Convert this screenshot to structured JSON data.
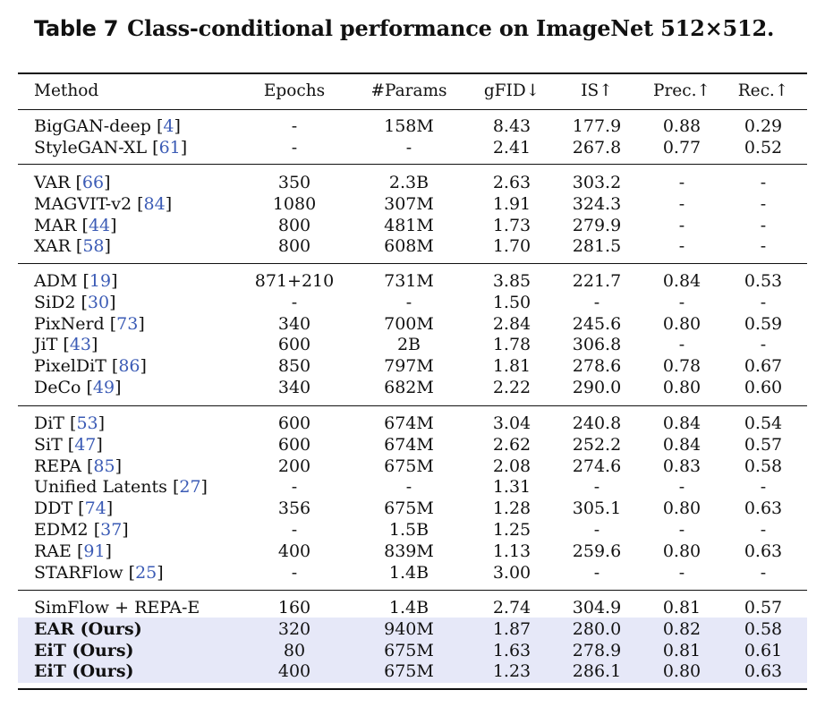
{
  "caption": {
    "label": "Table 7",
    "text": "Class-conditional performance on ImageNet 512×512."
  },
  "columns": [
    "Method",
    "Epochs",
    "#Params",
    "gFID↓",
    "IS↑",
    "Prec.↑",
    "Rec.↑"
  ],
  "groups": [
    {
      "rows": [
        {
          "method": "BigGAN-deep",
          "cite": "4",
          "epochs": "-",
          "params": "158M",
          "gfid": "8.43",
          "is": "177.9",
          "prec": "0.88",
          "rec": "0.29"
        },
        {
          "method": "StyleGAN-XL",
          "cite": "61",
          "epochs": "-",
          "params": "-",
          "gfid": "2.41",
          "is": "267.8",
          "prec": "0.77",
          "rec": "0.52"
        }
      ]
    },
    {
      "rows": [
        {
          "method": "VAR",
          "cite": "66",
          "epochs": "350",
          "params": "2.3B",
          "gfid": "2.63",
          "is": "303.2",
          "prec": "-",
          "rec": "-"
        },
        {
          "method": "MAGVIT-v2",
          "cite": "84",
          "epochs": "1080",
          "params": "307M",
          "gfid": "1.91",
          "is": "324.3",
          "prec": "-",
          "rec": "-"
        },
        {
          "method": "MAR",
          "cite": "44",
          "epochs": "800",
          "params": "481M",
          "gfid": "1.73",
          "is": "279.9",
          "prec": "-",
          "rec": "-"
        },
        {
          "method": "XAR",
          "cite": "58",
          "epochs": "800",
          "params": "608M",
          "gfid": "1.70",
          "is": "281.5",
          "prec": "-",
          "rec": "-"
        }
      ]
    },
    {
      "rows": [
        {
          "method": "ADM",
          "cite": "19",
          "epochs": "871+210",
          "params": "731M",
          "gfid": "3.85",
          "is": "221.7",
          "prec": "0.84",
          "rec": "0.53"
        },
        {
          "method": "SiD2",
          "cite": "30",
          "epochs": "-",
          "params": "-",
          "gfid": "1.50",
          "is": "-",
          "prec": "-",
          "rec": "-"
        },
        {
          "method": "PixNerd",
          "cite": "73",
          "epochs": "340",
          "params": "700M",
          "gfid": "2.84",
          "is": "245.6",
          "prec": "0.80",
          "rec": "0.59"
        },
        {
          "method": "JiT",
          "cite": "43",
          "epochs": "600",
          "params": "2B",
          "gfid": "1.78",
          "is": "306.8",
          "prec": "-",
          "rec": "-"
        },
        {
          "method": "PixelDiT",
          "cite": "86",
          "epochs": "850",
          "params": "797M",
          "gfid": "1.81",
          "is": "278.6",
          "prec": "0.78",
          "rec": "0.67"
        },
        {
          "method": "DeCo",
          "cite": "49",
          "epochs": "340",
          "params": "682M",
          "gfid": "2.22",
          "is": "290.0",
          "prec": "0.80",
          "rec": "0.60"
        }
      ]
    },
    {
      "rows": [
        {
          "method": "DiT",
          "cite": "53",
          "epochs": "600",
          "params": "674M",
          "gfid": "3.04",
          "is": "240.8",
          "prec": "0.84",
          "rec": "0.54"
        },
        {
          "method": "SiT",
          "cite": "47",
          "epochs": "600",
          "params": "674M",
          "gfid": "2.62",
          "is": "252.2",
          "prec": "0.84",
          "rec": "0.57"
        },
        {
          "method": "REPA",
          "cite": "85",
          "epochs": "200",
          "params": "675M",
          "gfid": "2.08",
          "is": "274.6",
          "prec": "0.83",
          "rec": "0.58"
        },
        {
          "method": "Unified Latents",
          "cite": "27",
          "epochs": "-",
          "params": "-",
          "gfid": "1.31",
          "is": "-",
          "prec": "-",
          "rec": "-"
        },
        {
          "method": "DDT",
          "cite": "74",
          "epochs": "356",
          "params": "675M",
          "gfid": "1.28",
          "is": "305.1",
          "prec": "0.80",
          "rec": "0.63"
        },
        {
          "method": "EDM2",
          "cite": "37",
          "epochs": "-",
          "params": "1.5B",
          "gfid": "1.25",
          "is": "-",
          "prec": "-",
          "rec": "-"
        },
        {
          "method": "RAE",
          "cite": "91",
          "epochs": "400",
          "params": "839M",
          "gfid": "1.13",
          "is": "259.6",
          "prec": "0.80",
          "rec": "0.63"
        },
        {
          "method": "STARFlow",
          "cite": "25",
          "epochs": "-",
          "params": "1.4B",
          "gfid": "3.00",
          "is": "-",
          "prec": "-",
          "rec": "-"
        }
      ]
    },
    {
      "rows": [
        {
          "method": "SimFlow + REPA-E",
          "cite": "",
          "epochs": "160",
          "params": "1.4B",
          "gfid": "2.74",
          "is": "304.9",
          "prec": "0.81",
          "rec": "0.57"
        },
        {
          "method": "EAR (Ours)",
          "cite": "",
          "bold": true,
          "highlight": true,
          "epochs": "320",
          "params": "940M",
          "gfid": "1.87",
          "is": "280.0",
          "prec": "0.82",
          "rec": "0.58"
        },
        {
          "method": "EiT (Ours)",
          "cite": "",
          "bold": true,
          "highlight": true,
          "epochs": "80",
          "params": "675M",
          "gfid": "1.63",
          "is": "278.9",
          "prec": "0.81",
          "rec": "0.61"
        },
        {
          "method": "EiT (Ours)",
          "cite": "",
          "bold": true,
          "highlight": true,
          "epochs": "400",
          "params": "675M",
          "gfid": "1.23",
          "is": "286.1",
          "prec": "0.80",
          "rec": "0.63"
        }
      ]
    }
  ],
  "colors": {
    "highlight": "#e6e8f8",
    "citation": "#3b5bb5"
  }
}
